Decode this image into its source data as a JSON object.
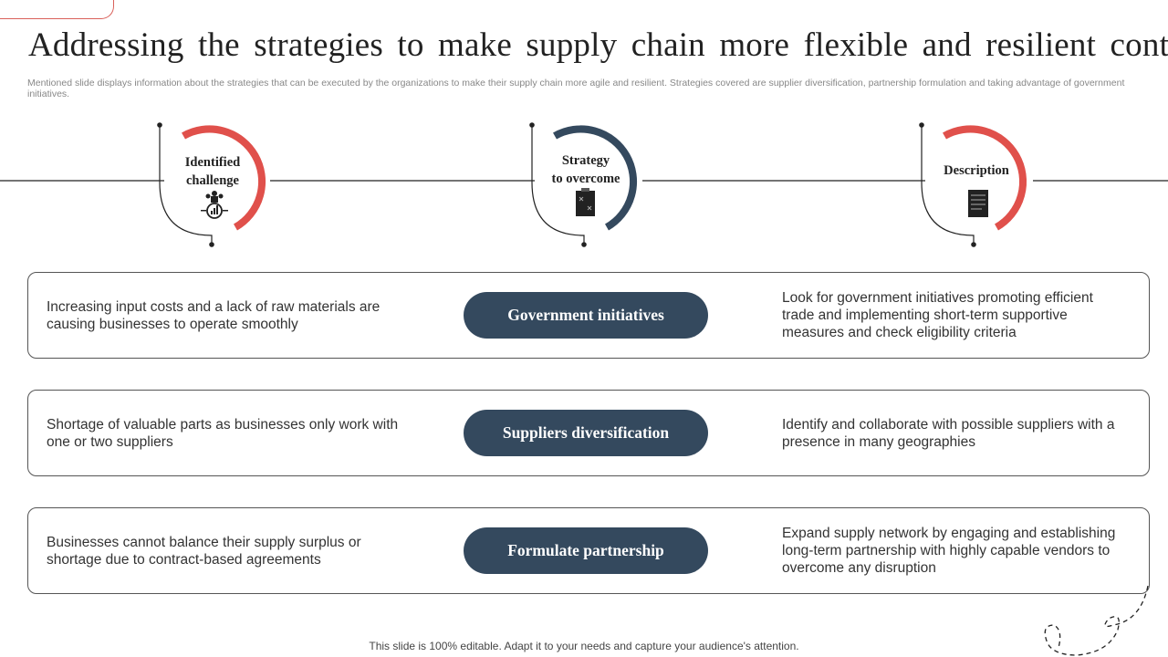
{
  "title": "Addressing the strategies to make supply chain more flexible and resilient cont..",
  "subtitle": "Mentioned slide displays information about the strategies that can be executed by the organizations to make their supply chain more agile and resilient. Strategies covered are supplier diversification, partnership formulation and taking advantage of government initiatives.",
  "headers": [
    {
      "label_1": "Identified",
      "label_2": "challenge",
      "icon": "team-chart-icon",
      "color": "#e0504b"
    },
    {
      "label_1": "Strategy",
      "label_2": "to overcome",
      "icon": "strategy-clipboard-icon",
      "color": "#34495e"
    },
    {
      "label_1": "Description",
      "icon": "document-icon",
      "color": "#e0504b"
    }
  ],
  "rows": [
    {
      "challenge": "Increasing input costs and a lack of raw materials are causing businesses to operate smoothly",
      "strategy": "Government initiatives",
      "description": "Look for government  initiatives promoting efficient trade and implementing short-term supportive measures and check eligibility criteria"
    },
    {
      "challenge": "Shortage of valuable parts as businesses only work with one or two suppliers",
      "strategy": "Suppliers diversification",
      "description": "Identify  and collaborate with possible suppliers with a presence in many geographies"
    },
    {
      "challenge": "Businesses cannot balance their supply surplus or shortage due to contract-based agreements",
      "strategy": "Formulate partnership",
      "description": "Expand supply network by engaging and establishing long-term partnership with highly capable vendors to overcome any disruption"
    }
  ],
  "footer": "This slide is 100% editable. Adapt it to your needs and capture your audience's attention."
}
